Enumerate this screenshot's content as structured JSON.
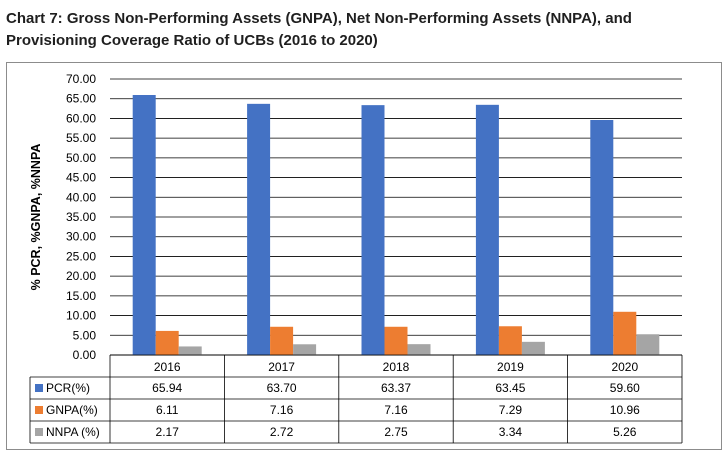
{
  "title": "Chart 7: Gross Non-Performing Assets (GNPA), Net Non-Performing Assets (NNPA), and Provisioning Coverage Ratio of UCBs (2016 to 2020)",
  "chart_data": {
    "type": "bar",
    "title": "Chart 7: Gross Non-Performing Assets (GNPA), Net Non-Performing Assets (NNPA), and Provisioning Coverage Ratio of UCBs (2016 to 2020)",
    "ylabel": "% PCR, %GNPA, %NNPA",
    "xlabel": "",
    "ylim": [
      0,
      70
    ],
    "yticks": [
      "0.00",
      "5.00",
      "10.00",
      "15.00",
      "20.00",
      "25.00",
      "30.00",
      "35.00",
      "40.00",
      "45.00",
      "50.00",
      "55.00",
      "60.00",
      "65.00",
      "70.00"
    ],
    "grid": true,
    "legend": "data-table",
    "categories": [
      "2016",
      "2017",
      "2018",
      "2019",
      "2020"
    ],
    "series": [
      {
        "name": "PCR(%)",
        "color": "#4472c4",
        "values": [
          65.94,
          63.7,
          63.37,
          63.45,
          59.6
        ],
        "labels": [
          "65.94",
          "63.70",
          "63.37",
          "63.45",
          "59.60"
        ]
      },
      {
        "name": "GNPA(%)",
        "color": "#ed7d31",
        "values": [
          6.11,
          7.16,
          7.16,
          7.29,
          10.96
        ],
        "labels": [
          "6.11",
          "7.16",
          "7.16",
          "7.29",
          "10.96"
        ]
      },
      {
        "name": "NNPA (%)",
        "color": "#a5a5a5",
        "values": [
          2.17,
          2.72,
          2.75,
          3.34,
          5.26
        ],
        "labels": [
          "2.17",
          "2.72",
          "2.75",
          "3.34",
          "5.26"
        ]
      }
    ]
  }
}
